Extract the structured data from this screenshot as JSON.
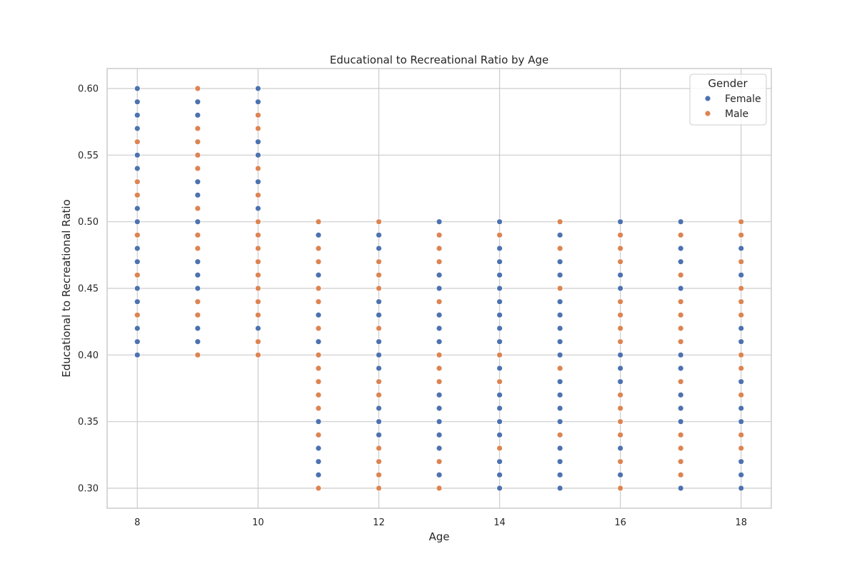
{
  "chart_data": {
    "type": "scatter",
    "title": "Educational to Recreational Ratio by Age",
    "xlabel": "Age",
    "ylabel": "Educational to Recreational Ratio",
    "xlim": [
      7.5,
      18.5
    ],
    "ylim": [
      0.285,
      0.615
    ],
    "xticks": [
      8,
      10,
      12,
      14,
      16,
      18
    ],
    "yticks": [
      0.3,
      0.35,
      0.4,
      0.45,
      0.5,
      0.55,
      0.6
    ],
    "grid": true,
    "legend": {
      "title": "Gender",
      "placement": "top-right"
    },
    "series": [
      {
        "name": "Female",
        "color": "#4c72b0",
        "points": [
          [
            8,
            0.6
          ],
          [
            8,
            0.59
          ],
          [
            8,
            0.58
          ],
          [
            8,
            0.57
          ],
          [
            8,
            0.55
          ],
          [
            8,
            0.54
          ],
          [
            8,
            0.51
          ],
          [
            8,
            0.5
          ],
          [
            8,
            0.48
          ],
          [
            8,
            0.47
          ],
          [
            8,
            0.45
          ],
          [
            8,
            0.44
          ],
          [
            8,
            0.42
          ],
          [
            8,
            0.41
          ],
          [
            8,
            0.4
          ],
          [
            9,
            0.59
          ],
          [
            9,
            0.58
          ],
          [
            9,
            0.53
          ],
          [
            9,
            0.52
          ],
          [
            9,
            0.5
          ],
          [
            9,
            0.47
          ],
          [
            9,
            0.46
          ],
          [
            9,
            0.45
          ],
          [
            9,
            0.42
          ],
          [
            9,
            0.41
          ],
          [
            10,
            0.6
          ],
          [
            10,
            0.59
          ],
          [
            10,
            0.56
          ],
          [
            10,
            0.55
          ],
          [
            10,
            0.53
          ],
          [
            10,
            0.51
          ],
          [
            10,
            0.42
          ],
          [
            11,
            0.49
          ],
          [
            11,
            0.46
          ],
          [
            11,
            0.43
          ],
          [
            11,
            0.41
          ],
          [
            11,
            0.35
          ],
          [
            11,
            0.33
          ],
          [
            11,
            0.32
          ],
          [
            11,
            0.31
          ],
          [
            12,
            0.49
          ],
          [
            12,
            0.48
          ],
          [
            12,
            0.44
          ],
          [
            12,
            0.43
          ],
          [
            12,
            0.41
          ],
          [
            12,
            0.4
          ],
          [
            12,
            0.39
          ],
          [
            12,
            0.36
          ],
          [
            12,
            0.35
          ],
          [
            12,
            0.34
          ],
          [
            13,
            0.5
          ],
          [
            13,
            0.46
          ],
          [
            13,
            0.45
          ],
          [
            13,
            0.43
          ],
          [
            13,
            0.42
          ],
          [
            13,
            0.41
          ],
          [
            13,
            0.37
          ],
          [
            13,
            0.36
          ],
          [
            13,
            0.35
          ],
          [
            13,
            0.34
          ],
          [
            13,
            0.33
          ],
          [
            13,
            0.31
          ],
          [
            14,
            0.5
          ],
          [
            14,
            0.48
          ],
          [
            14,
            0.47
          ],
          [
            14,
            0.46
          ],
          [
            14,
            0.45
          ],
          [
            14,
            0.44
          ],
          [
            14,
            0.43
          ],
          [
            14,
            0.42
          ],
          [
            14,
            0.41
          ],
          [
            14,
            0.39
          ],
          [
            14,
            0.37
          ],
          [
            14,
            0.36
          ],
          [
            14,
            0.35
          ],
          [
            14,
            0.34
          ],
          [
            14,
            0.32
          ],
          [
            14,
            0.31
          ],
          [
            14,
            0.3
          ],
          [
            15,
            0.49
          ],
          [
            15,
            0.47
          ],
          [
            15,
            0.46
          ],
          [
            15,
            0.44
          ],
          [
            15,
            0.43
          ],
          [
            15,
            0.42
          ],
          [
            15,
            0.41
          ],
          [
            15,
            0.4
          ],
          [
            15,
            0.38
          ],
          [
            15,
            0.37
          ],
          [
            15,
            0.36
          ],
          [
            15,
            0.35
          ],
          [
            15,
            0.33
          ],
          [
            15,
            0.32
          ],
          [
            15,
            0.31
          ],
          [
            15,
            0.3
          ],
          [
            16,
            0.5
          ],
          [
            16,
            0.46
          ],
          [
            16,
            0.45
          ],
          [
            16,
            0.4
          ],
          [
            16,
            0.39
          ],
          [
            16,
            0.38
          ],
          [
            16,
            0.33
          ],
          [
            16,
            0.31
          ],
          [
            17,
            0.5
          ],
          [
            17,
            0.48
          ],
          [
            17,
            0.47
          ],
          [
            17,
            0.45
          ],
          [
            17,
            0.4
          ],
          [
            17,
            0.39
          ],
          [
            17,
            0.37
          ],
          [
            17,
            0.36
          ],
          [
            17,
            0.35
          ],
          [
            17,
            0.3
          ],
          [
            18,
            0.48
          ],
          [
            18,
            0.46
          ],
          [
            18,
            0.42
          ],
          [
            18,
            0.41
          ],
          [
            18,
            0.38
          ],
          [
            18,
            0.36
          ],
          [
            18,
            0.35
          ],
          [
            18,
            0.32
          ],
          [
            18,
            0.31
          ],
          [
            18,
            0.3
          ]
        ]
      },
      {
        "name": "Male",
        "color": "#dd8452",
        "points": [
          [
            8,
            0.56
          ],
          [
            8,
            0.53
          ],
          [
            8,
            0.52
          ],
          [
            8,
            0.49
          ],
          [
            8,
            0.46
          ],
          [
            8,
            0.43
          ],
          [
            9,
            0.6
          ],
          [
            9,
            0.57
          ],
          [
            9,
            0.56
          ],
          [
            9,
            0.55
          ],
          [
            9,
            0.54
          ],
          [
            9,
            0.51
          ],
          [
            9,
            0.49
          ],
          [
            9,
            0.48
          ],
          [
            9,
            0.44
          ],
          [
            9,
            0.43
          ],
          [
            9,
            0.4
          ],
          [
            10,
            0.58
          ],
          [
            10,
            0.57
          ],
          [
            10,
            0.54
          ],
          [
            10,
            0.52
          ],
          [
            10,
            0.5
          ],
          [
            10,
            0.49
          ],
          [
            10,
            0.48
          ],
          [
            10,
            0.47
          ],
          [
            10,
            0.46
          ],
          [
            10,
            0.45
          ],
          [
            10,
            0.44
          ],
          [
            10,
            0.43
          ],
          [
            10,
            0.41
          ],
          [
            10,
            0.4
          ],
          [
            11,
            0.5
          ],
          [
            11,
            0.48
          ],
          [
            11,
            0.47
          ],
          [
            11,
            0.45
          ],
          [
            11,
            0.44
          ],
          [
            11,
            0.42
          ],
          [
            11,
            0.4
          ],
          [
            11,
            0.39
          ],
          [
            11,
            0.38
          ],
          [
            11,
            0.37
          ],
          [
            11,
            0.36
          ],
          [
            11,
            0.34
          ],
          [
            11,
            0.3
          ],
          [
            12,
            0.5
          ],
          [
            12,
            0.47
          ],
          [
            12,
            0.46
          ],
          [
            12,
            0.45
          ],
          [
            12,
            0.42
          ],
          [
            12,
            0.38
          ],
          [
            12,
            0.37
          ],
          [
            12,
            0.33
          ],
          [
            12,
            0.32
          ],
          [
            12,
            0.31
          ],
          [
            12,
            0.3
          ],
          [
            13,
            0.49
          ],
          [
            13,
            0.48
          ],
          [
            13,
            0.47
          ],
          [
            13,
            0.44
          ],
          [
            13,
            0.4
          ],
          [
            13,
            0.39
          ],
          [
            13,
            0.38
          ],
          [
            13,
            0.32
          ],
          [
            13,
            0.3
          ],
          [
            14,
            0.49
          ],
          [
            14,
            0.4
          ],
          [
            14,
            0.38
          ],
          [
            14,
            0.33
          ],
          [
            15,
            0.5
          ],
          [
            15,
            0.48
          ],
          [
            15,
            0.45
          ],
          [
            15,
            0.39
          ],
          [
            15,
            0.34
          ],
          [
            16,
            0.49
          ],
          [
            16,
            0.48
          ],
          [
            16,
            0.47
          ],
          [
            16,
            0.44
          ],
          [
            16,
            0.43
          ],
          [
            16,
            0.42
          ],
          [
            16,
            0.41
          ],
          [
            16,
            0.37
          ],
          [
            16,
            0.36
          ],
          [
            16,
            0.35
          ],
          [
            16,
            0.34
          ],
          [
            16,
            0.32
          ],
          [
            16,
            0.3
          ],
          [
            17,
            0.49
          ],
          [
            17,
            0.46
          ],
          [
            17,
            0.44
          ],
          [
            17,
            0.43
          ],
          [
            17,
            0.42
          ],
          [
            17,
            0.41
          ],
          [
            17,
            0.38
          ],
          [
            17,
            0.34
          ],
          [
            17,
            0.33
          ],
          [
            17,
            0.32
          ],
          [
            17,
            0.31
          ],
          [
            18,
            0.5
          ],
          [
            18,
            0.49
          ],
          [
            18,
            0.47
          ],
          [
            18,
            0.45
          ],
          [
            18,
            0.44
          ],
          [
            18,
            0.43
          ],
          [
            18,
            0.4
          ],
          [
            18,
            0.39
          ],
          [
            18,
            0.37
          ],
          [
            18,
            0.34
          ],
          [
            18,
            0.33
          ]
        ]
      }
    ]
  }
}
